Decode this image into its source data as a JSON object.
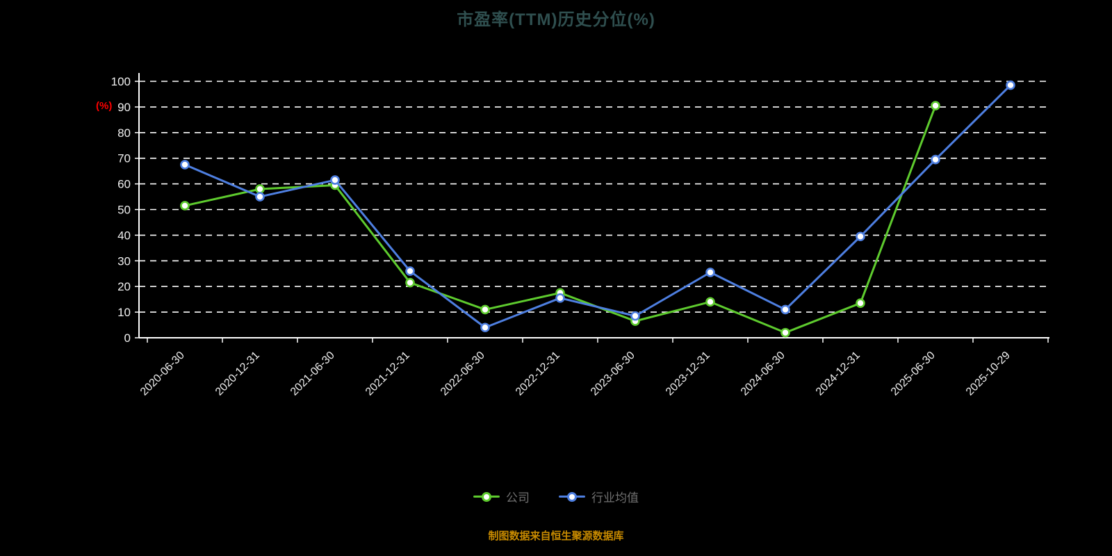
{
  "title": "市盈率(TTM)历史分位(%)",
  "y_axis_unit": "(%)",
  "footer": "制图数据来自恒生聚源数据库",
  "legend": [
    {
      "label": "公司",
      "color": "#5ecb2e"
    },
    {
      "label": "行业均值",
      "color": "#4e7fe1"
    }
  ],
  "colors": {
    "background": "#000000",
    "title": "#2f4f4f",
    "axis": "#ffffff",
    "tick_label": "#f0f0f0",
    "grid": "#ffffff",
    "unit_label": "#ff0000",
    "footer": "#c78a00",
    "legend_text": "#707070",
    "marker_fill": "#ffffff"
  },
  "chart_data": {
    "type": "line",
    "title": "市盈率(TTM)历史分位(%)",
    "xlabel": "",
    "ylabel": "(%)",
    "ylim": [
      0,
      100
    ],
    "y_ticks": [
      0,
      10,
      20,
      30,
      40,
      50,
      60,
      70,
      80,
      90,
      100
    ],
    "grid": "dashed-horizontal",
    "legend_position": "bottom",
    "categories": [
      "2020-06-30",
      "2020-12-31",
      "2021-06-30",
      "2021-12-31",
      "2022-06-30",
      "2022-12-31",
      "2023-06-30",
      "2023-12-31",
      "2024-06-30",
      "2024-12-31",
      "2025-06-30",
      "2025-10-29"
    ],
    "series": [
      {
        "name": "公司",
        "color": "#5ecb2e",
        "values": [
          51.5,
          58,
          59.5,
          21.5,
          11,
          17.5,
          6.5,
          14,
          2,
          13.5,
          90.5,
          null
        ]
      },
      {
        "name": "行业均值",
        "color": "#4e7fe1",
        "values": [
          67.5,
          55,
          61.5,
          26,
          4,
          15.5,
          8.5,
          25.5,
          11,
          39.5,
          69.5,
          98.5
        ]
      }
    ]
  }
}
